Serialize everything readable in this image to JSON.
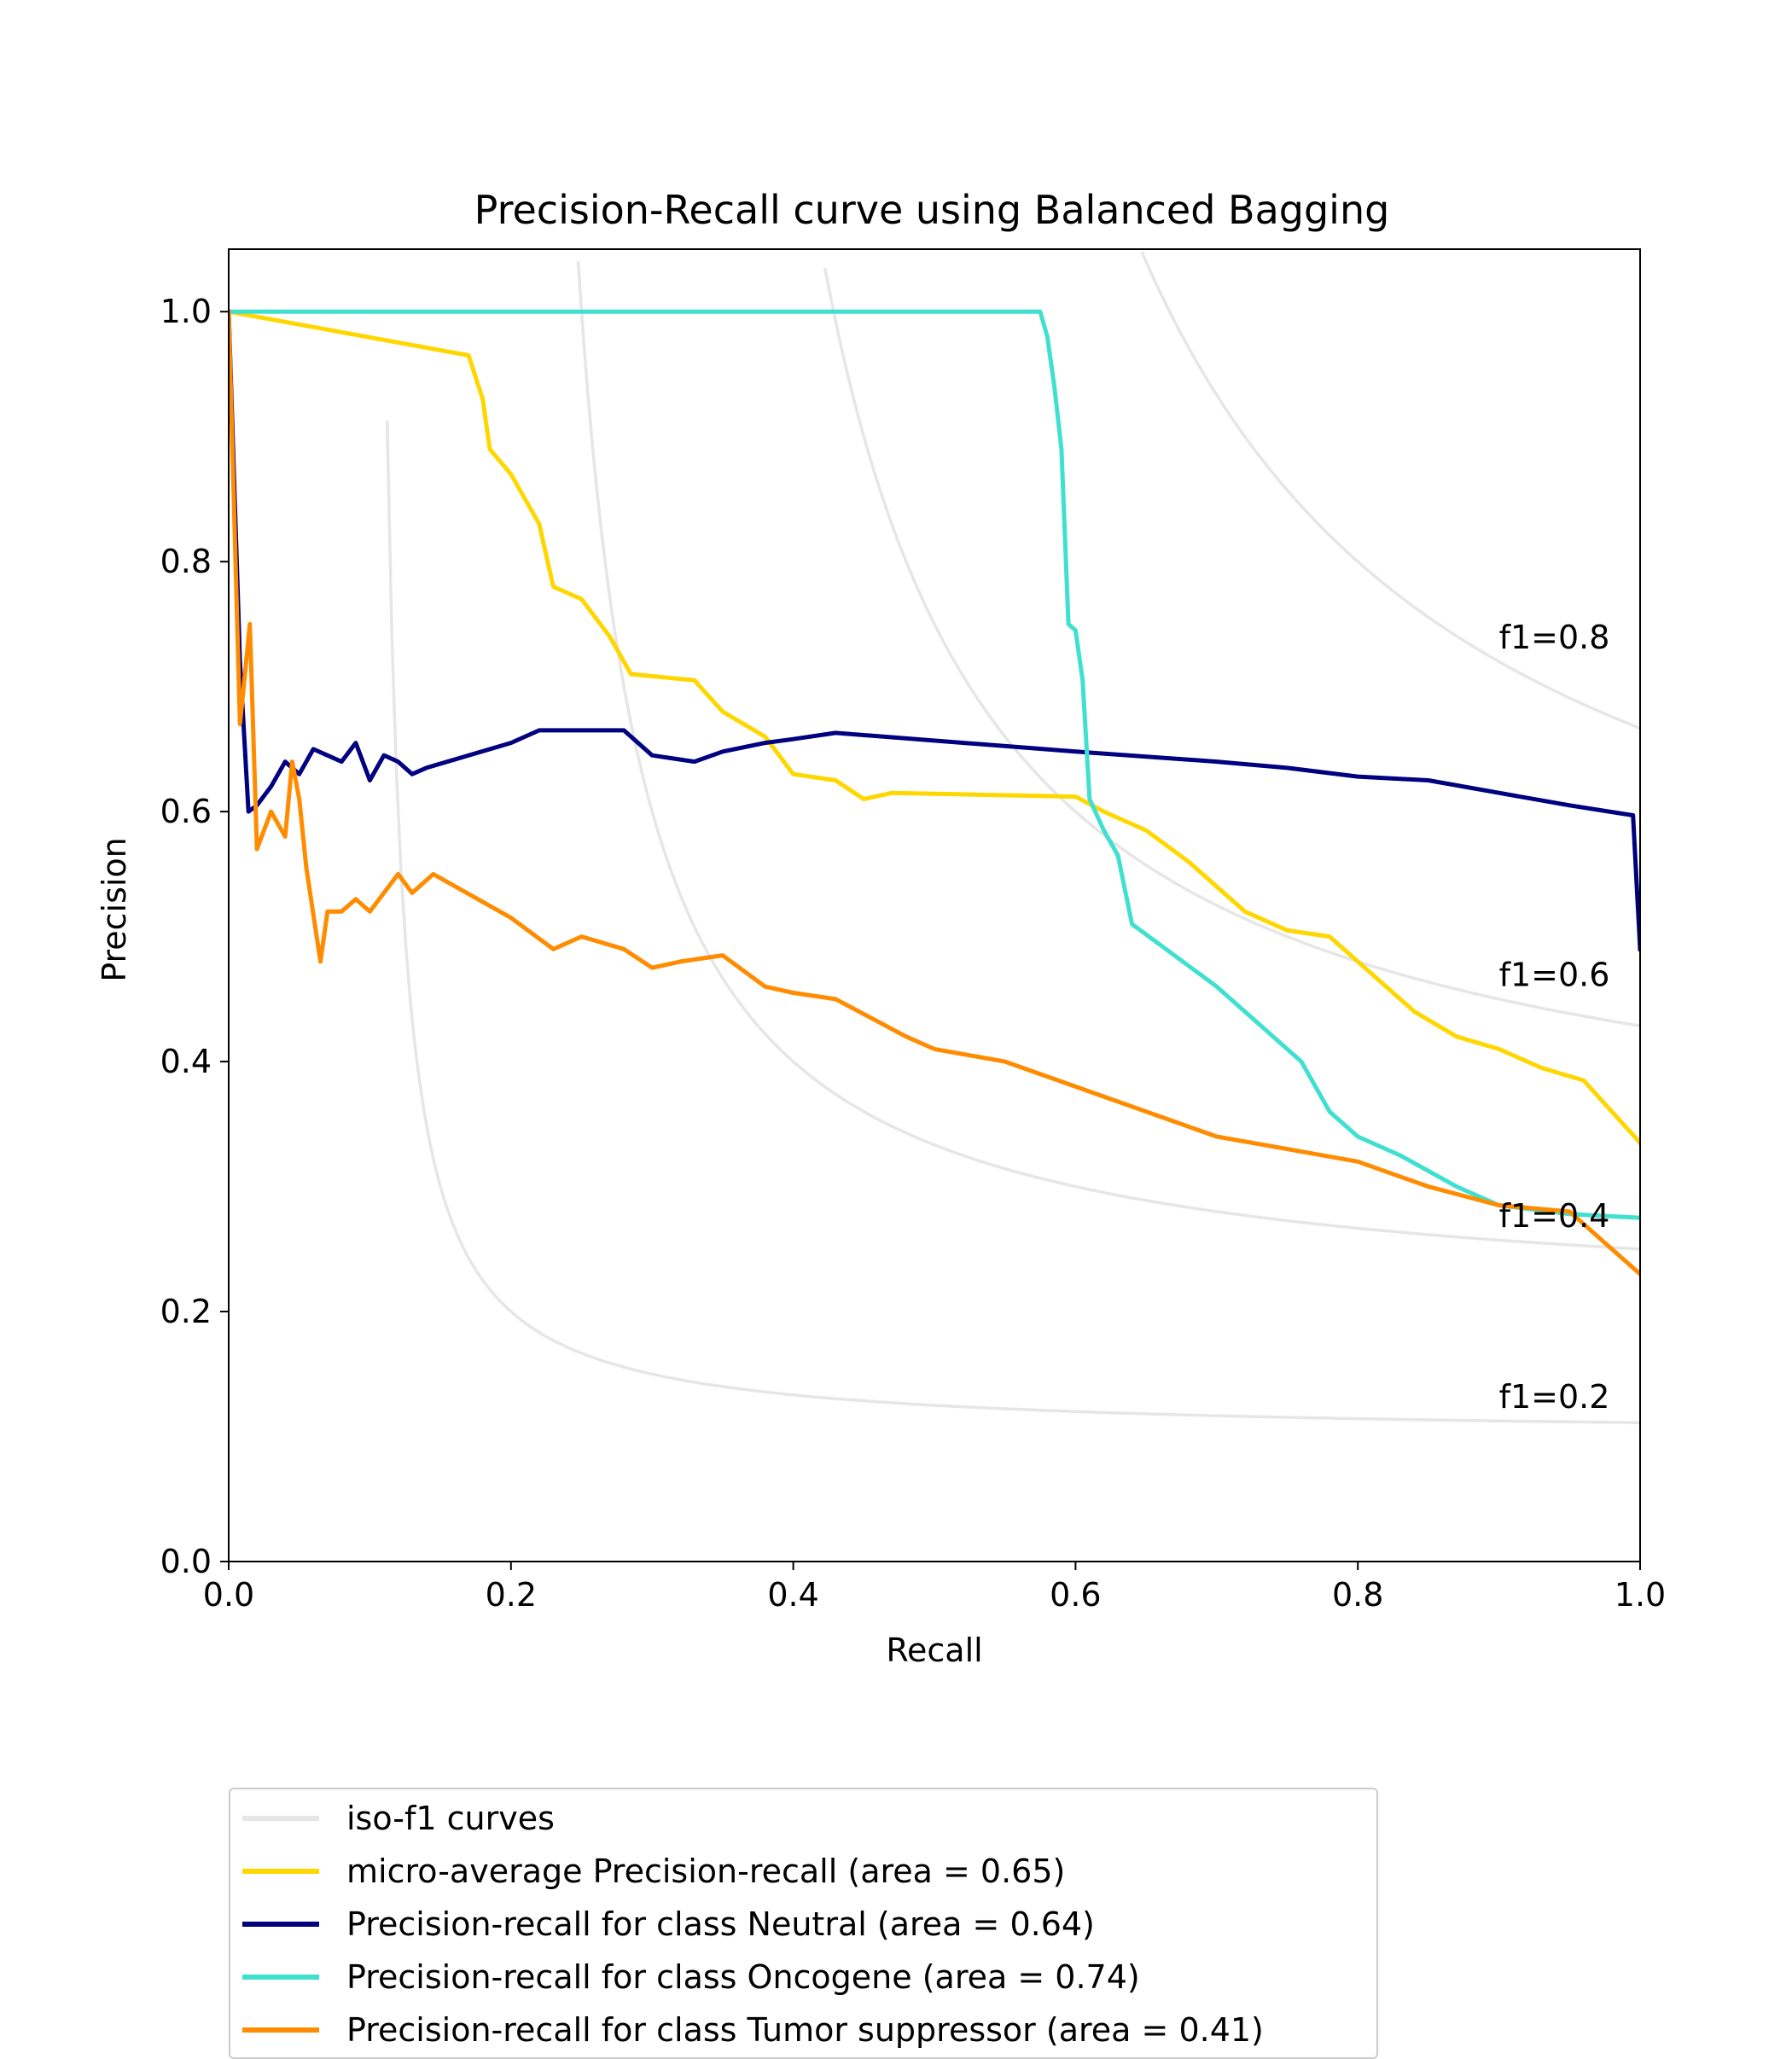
{
  "chart_data": {
    "type": "line",
    "title": "Precision-Recall curve using Balanced Bagging",
    "xlabel": "Recall",
    "ylabel": "Precision",
    "xlim": [
      0.0,
      1.0
    ],
    "ylim": [
      0.0,
      1.05
    ],
    "xticks": [
      "0.0",
      "0.2",
      "0.4",
      "0.6",
      "0.8",
      "1.0"
    ],
    "yticks": [
      "0.0",
      "0.2",
      "0.4",
      "0.6",
      "0.8",
      "1.0"
    ],
    "grid": false,
    "legend_position": "below",
    "iso_f1": {
      "legend_label": "iso-f1 curves",
      "color": "#e6e6e6",
      "values": [
        0.2,
        0.4,
        0.6,
        0.8
      ],
      "labels": [
        "f1=0.2",
        "f1=0.4",
        "f1=0.6",
        "f1=0.8"
      ]
    },
    "series": [
      {
        "name": "micro-average Precision-recall (area = 0.65)",
        "color": "#ffd700",
        "points": [
          [
            0.0,
            1.0
          ],
          [
            0.17,
            0.965
          ],
          [
            0.18,
            0.93
          ],
          [
            0.185,
            0.89
          ],
          [
            0.2,
            0.87
          ],
          [
            0.22,
            0.83
          ],
          [
            0.23,
            0.78
          ],
          [
            0.25,
            0.77
          ],
          [
            0.27,
            0.74
          ],
          [
            0.285,
            0.71
          ],
          [
            0.33,
            0.705
          ],
          [
            0.35,
            0.68
          ],
          [
            0.38,
            0.66
          ],
          [
            0.4,
            0.63
          ],
          [
            0.43,
            0.625
          ],
          [
            0.45,
            0.61
          ],
          [
            0.47,
            0.615
          ],
          [
            0.6,
            0.612
          ],
          [
            0.62,
            0.6
          ],
          [
            0.65,
            0.585
          ],
          [
            0.68,
            0.56
          ],
          [
            0.72,
            0.52
          ],
          [
            0.75,
            0.505
          ],
          [
            0.78,
            0.5
          ],
          [
            0.8,
            0.48
          ],
          [
            0.82,
            0.46
          ],
          [
            0.84,
            0.44
          ],
          [
            0.87,
            0.42
          ],
          [
            0.9,
            0.41
          ],
          [
            0.93,
            0.395
          ],
          [
            0.96,
            0.385
          ],
          [
            1.0,
            0.335
          ]
        ]
      },
      {
        "name": "Precision-recall for class Neutral (area = 0.64)",
        "color": "#000080",
        "points": [
          [
            0.0,
            1.0
          ],
          [
            0.008,
            0.72
          ],
          [
            0.014,
            0.6
          ],
          [
            0.02,
            0.605
          ],
          [
            0.03,
            0.62
          ],
          [
            0.04,
            0.64
          ],
          [
            0.05,
            0.63
          ],
          [
            0.06,
            0.65
          ],
          [
            0.08,
            0.64
          ],
          [
            0.09,
            0.655
          ],
          [
            0.1,
            0.625
          ],
          [
            0.11,
            0.645
          ],
          [
            0.12,
            0.64
          ],
          [
            0.13,
            0.63
          ],
          [
            0.14,
            0.635
          ],
          [
            0.2,
            0.655
          ],
          [
            0.22,
            0.665
          ],
          [
            0.25,
            0.665
          ],
          [
            0.28,
            0.665
          ],
          [
            0.3,
            0.645
          ],
          [
            0.33,
            0.64
          ],
          [
            0.35,
            0.648
          ],
          [
            0.38,
            0.655
          ],
          [
            0.4,
            0.658
          ],
          [
            0.43,
            0.663
          ],
          [
            0.6,
            0.648
          ],
          [
            0.7,
            0.64
          ],
          [
            0.75,
            0.635
          ],
          [
            0.8,
            0.628
          ],
          [
            0.85,
            0.625
          ],
          [
            0.9,
            0.615
          ],
          [
            0.95,
            0.605
          ],
          [
            0.995,
            0.597
          ],
          [
            1.0,
            0.49
          ]
        ]
      },
      {
        "name": "Precision-recall for class Oncogene (area = 0.74)",
        "color": "#40e0d0",
        "points": [
          [
            0.0,
            1.0
          ],
          [
            0.575,
            1.0
          ],
          [
            0.58,
            0.98
          ],
          [
            0.585,
            0.94
          ],
          [
            0.59,
            0.89
          ],
          [
            0.595,
            0.75
          ],
          [
            0.6,
            0.745
          ],
          [
            0.605,
            0.705
          ],
          [
            0.61,
            0.61
          ],
          [
            0.62,
            0.585
          ],
          [
            0.63,
            0.565
          ],
          [
            0.64,
            0.51
          ],
          [
            0.7,
            0.46
          ],
          [
            0.76,
            0.4
          ],
          [
            0.78,
            0.36
          ],
          [
            0.8,
            0.34
          ],
          [
            0.83,
            0.325
          ],
          [
            0.87,
            0.3
          ],
          [
            0.9,
            0.285
          ],
          [
            0.95,
            0.278
          ],
          [
            1.0,
            0.275
          ]
        ]
      },
      {
        "name": "Precision-recall for class Tumor suppressor (area = 0.41)",
        "color": "#ff8c00",
        "points": [
          [
            0.0,
            1.0
          ],
          [
            0.008,
            0.67
          ],
          [
            0.015,
            0.75
          ],
          [
            0.02,
            0.57
          ],
          [
            0.03,
            0.6
          ],
          [
            0.04,
            0.58
          ],
          [
            0.045,
            0.64
          ],
          [
            0.05,
            0.61
          ],
          [
            0.055,
            0.555
          ],
          [
            0.065,
            0.48
          ],
          [
            0.07,
            0.52
          ],
          [
            0.08,
            0.52
          ],
          [
            0.09,
            0.53
          ],
          [
            0.1,
            0.52
          ],
          [
            0.12,
            0.55
          ],
          [
            0.13,
            0.535
          ],
          [
            0.145,
            0.55
          ],
          [
            0.2,
            0.515
          ],
          [
            0.23,
            0.49
          ],
          [
            0.25,
            0.5
          ],
          [
            0.28,
            0.49
          ],
          [
            0.3,
            0.475
          ],
          [
            0.32,
            0.48
          ],
          [
            0.35,
            0.485
          ],
          [
            0.38,
            0.46
          ],
          [
            0.4,
            0.455
          ],
          [
            0.43,
            0.45
          ],
          [
            0.48,
            0.42
          ],
          [
            0.5,
            0.41
          ],
          [
            0.55,
            0.4
          ],
          [
            0.6,
            0.38
          ],
          [
            0.7,
            0.34
          ],
          [
            0.75,
            0.33
          ],
          [
            0.8,
            0.32
          ],
          [
            0.85,
            0.3
          ],
          [
            0.9,
            0.285
          ],
          [
            0.95,
            0.28
          ],
          [
            1.0,
            0.23
          ]
        ]
      }
    ]
  }
}
